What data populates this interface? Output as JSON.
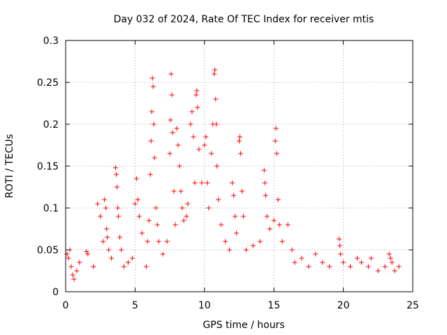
{
  "chart_data": {
    "type": "scatter",
    "title": "Day 032 of 2024, Rate Of TEC Index for receiver mtis",
    "xlabel": "GPS time / hours",
    "ylabel": "ROTI / TECUs",
    "xlim": [
      0,
      25
    ],
    "ylim": [
      0,
      0.3
    ],
    "x_ticks": [
      0,
      5,
      10,
      15,
      20,
      25
    ],
    "y_ticks": [
      0,
      0.05,
      0.1,
      0.15,
      0.2,
      0.25,
      0.3
    ],
    "x_tick_labels": [
      "0",
      "5",
      "10",
      "15",
      "20",
      "25"
    ],
    "y_tick_labels": [
      "0",
      "0.05",
      "0.1",
      "0.15",
      "0.2",
      "0.25",
      "0.3"
    ],
    "grid": true,
    "marker": "+",
    "color": "#ff0000",
    "series": [
      {
        "name": "ROTI",
        "points": [
          [
            0.1,
            0.045
          ],
          [
            0.2,
            0.04
          ],
          [
            0.3,
            0.05
          ],
          [
            0.4,
            0.03
          ],
          [
            0.5,
            0.02
          ],
          [
            0.6,
            0.015
          ],
          [
            0.8,
            0.025
          ],
          [
            1.0,
            0.035
          ],
          [
            1.5,
            0.048
          ],
          [
            1.6,
            0.045
          ],
          [
            2.0,
            0.03
          ],
          [
            2.3,
            0.105
          ],
          [
            2.5,
            0.09
          ],
          [
            2.7,
            0.06
          ],
          [
            2.8,
            0.11
          ],
          [
            2.9,
            0.1
          ],
          [
            2.95,
            0.075
          ],
          [
            3.0,
            0.065
          ],
          [
            3.1,
            0.05
          ],
          [
            3.3,
            0.04
          ],
          [
            3.6,
            0.148
          ],
          [
            3.65,
            0.14
          ],
          [
            3.7,
            0.125
          ],
          [
            3.75,
            0.1
          ],
          [
            3.8,
            0.09
          ],
          [
            3.9,
            0.065
          ],
          [
            4.0,
            0.05
          ],
          [
            4.2,
            0.03
          ],
          [
            4.5,
            0.035
          ],
          [
            4.8,
            0.04
          ],
          [
            5.0,
            0.105
          ],
          [
            5.1,
            0.135
          ],
          [
            5.2,
            0.11
          ],
          [
            5.3,
            0.09
          ],
          [
            5.5,
            0.07
          ],
          [
            5.8,
            0.03
          ],
          [
            5.9,
            0.06
          ],
          [
            6.0,
            0.085
          ],
          [
            6.1,
            0.14
          ],
          [
            6.15,
            0.18
          ],
          [
            6.2,
            0.215
          ],
          [
            6.25,
            0.255
          ],
          [
            6.3,
            0.245
          ],
          [
            6.35,
            0.2
          ],
          [
            6.4,
            0.16
          ],
          [
            6.5,
            0.1
          ],
          [
            6.6,
            0.08
          ],
          [
            6.7,
            0.06
          ],
          [
            7.0,
            0.045
          ],
          [
            7.3,
            0.06
          ],
          [
            7.5,
            0.165
          ],
          [
            7.55,
            0.205
          ],
          [
            7.6,
            0.26
          ],
          [
            7.65,
            0.235
          ],
          [
            7.7,
            0.19
          ],
          [
            7.8,
            0.12
          ],
          [
            7.9,
            0.08
          ],
          [
            8.0,
            0.195
          ],
          [
            8.1,
            0.175
          ],
          [
            8.2,
            0.15
          ],
          [
            8.3,
            0.12
          ],
          [
            8.4,
            0.1
          ],
          [
            8.5,
            0.085
          ],
          [
            8.7,
            0.09
          ],
          [
            8.8,
            0.105
          ],
          [
            9.0,
            0.2
          ],
          [
            9.1,
            0.215
          ],
          [
            9.2,
            0.185
          ],
          [
            9.3,
            0.13
          ],
          [
            9.4,
            0.235
          ],
          [
            9.45,
            0.24
          ],
          [
            9.5,
            0.22
          ],
          [
            9.6,
            0.17
          ],
          [
            9.8,
            0.13
          ],
          [
            10.0,
            0.175
          ],
          [
            10.1,
            0.185
          ],
          [
            10.2,
            0.13
          ],
          [
            10.3,
            0.1
          ],
          [
            10.5,
            0.165
          ],
          [
            10.6,
            0.2
          ],
          [
            10.7,
            0.26
          ],
          [
            10.75,
            0.265
          ],
          [
            10.8,
            0.23
          ],
          [
            10.85,
            0.2
          ],
          [
            10.9,
            0.15
          ],
          [
            11.0,
            0.11
          ],
          [
            11.2,
            0.08
          ],
          [
            11.5,
            0.06
          ],
          [
            11.8,
            0.05
          ],
          [
            12.0,
            0.13
          ],
          [
            12.1,
            0.115
          ],
          [
            12.2,
            0.09
          ],
          [
            12.3,
            0.07
          ],
          [
            12.5,
            0.18
          ],
          [
            12.55,
            0.185
          ],
          [
            12.6,
            0.165
          ],
          [
            12.7,
            0.12
          ],
          [
            12.8,
            0.09
          ],
          [
            13.0,
            0.05
          ],
          [
            13.5,
            0.055
          ],
          [
            14.0,
            0.06
          ],
          [
            14.3,
            0.145
          ],
          [
            14.35,
            0.13
          ],
          [
            14.4,
            0.115
          ],
          [
            14.5,
            0.09
          ],
          [
            14.7,
            0.075
          ],
          [
            15.0,
            0.085
          ],
          [
            15.1,
            0.18
          ],
          [
            15.15,
            0.195
          ],
          [
            15.2,
            0.165
          ],
          [
            15.3,
            0.11
          ],
          [
            15.4,
            0.08
          ],
          [
            15.6,
            0.06
          ],
          [
            16.0,
            0.08
          ],
          [
            16.3,
            0.05
          ],
          [
            16.5,
            0.035
          ],
          [
            17.0,
            0.04
          ],
          [
            17.5,
            0.03
          ],
          [
            18.0,
            0.045
          ],
          [
            18.5,
            0.035
          ],
          [
            19.0,
            0.03
          ],
          [
            19.7,
            0.063
          ],
          [
            19.75,
            0.055
          ],
          [
            19.8,
            0.045
          ],
          [
            20.0,
            0.035
          ],
          [
            20.5,
            0.03
          ],
          [
            21.0,
            0.04
          ],
          [
            21.3,
            0.035
          ],
          [
            21.8,
            0.03
          ],
          [
            22.0,
            0.04
          ],
          [
            22.5,
            0.025
          ],
          [
            23.0,
            0.03
          ],
          [
            23.3,
            0.045
          ],
          [
            23.4,
            0.04
          ],
          [
            23.5,
            0.035
          ],
          [
            23.7,
            0.025
          ],
          [
            24.0,
            0.03
          ]
        ]
      }
    ]
  }
}
